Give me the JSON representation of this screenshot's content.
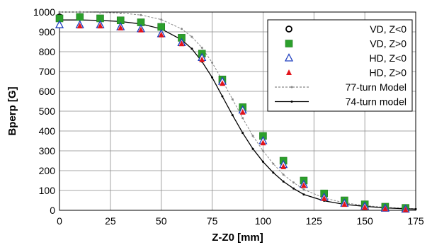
{
  "chart_data": {
    "type": "scatter",
    "xlabel": "Z-Z0 [mm]",
    "ylabel": "Bperp [G]",
    "xlim": [
      0,
      175
    ],
    "ylim": [
      0,
      1000
    ],
    "xticks": [
      "0",
      "25",
      "50",
      "75",
      "100",
      "125",
      "150",
      "175"
    ],
    "yticks": [
      "0",
      "100",
      "200",
      "300",
      "400",
      "500",
      "600",
      "700",
      "800",
      "900",
      "1000"
    ],
    "grid": true,
    "legend_position": "top-right",
    "series": [
      {
        "name": "VD, Z<0",
        "marker": "open-circle",
        "color": "#000000",
        "x": [
          0
        ],
        "y": [
          975
        ]
      },
      {
        "name": "VD, Z>0",
        "marker": "filled-square",
        "color": "#2ca02c",
        "x": [
          0,
          10,
          20,
          30,
          40,
          50,
          60,
          70,
          80,
          90,
          100,
          110,
          120,
          130,
          140,
          150,
          160,
          170
        ],
        "y": [
          968,
          975,
          968,
          958,
          948,
          925,
          870,
          790,
          660,
          520,
          375,
          250,
          150,
          85,
          50,
          30,
          18,
          12
        ]
      },
      {
        "name": "HD, Z<0",
        "marker": "open-triangle",
        "color": "#1f3fbf",
        "x": [
          0,
          10,
          20,
          30,
          40,
          50,
          60,
          70,
          80,
          90,
          100,
          110,
          120,
          130,
          140,
          150,
          160,
          170
        ],
        "y": [
          935,
          935,
          935,
          925,
          915,
          890,
          845,
          770,
          650,
          505,
          350,
          230,
          130,
          65,
          35,
          20,
          10,
          5
        ]
      },
      {
        "name": "HD, Z>0",
        "marker": "filled-triangle",
        "color": "#e3141b",
        "x": [
          10,
          20,
          30,
          40,
          50,
          60,
          70,
          80,
          90,
          100,
          110,
          120,
          130,
          140,
          150,
          160,
          170
        ],
        "y": [
          930,
          930,
          920,
          910,
          885,
          840,
          760,
          640,
          495,
          340,
          220,
          125,
          60,
          30,
          15,
          8,
          3
        ]
      },
      {
        "name": "77-turn Model",
        "marker": "line-dashed-dots",
        "color": "#888888",
        "x": [
          0,
          10,
          20,
          30,
          40,
          50,
          60,
          65,
          70,
          75,
          80,
          85,
          90,
          95,
          100,
          105,
          110,
          115,
          120,
          130,
          140,
          150,
          160,
          170,
          175
        ],
        "y": [
          1000,
          1000,
          998,
          995,
          985,
          962,
          915,
          875,
          820,
          745,
          655,
          560,
          465,
          375,
          300,
          235,
          180,
          140,
          105,
          62,
          38,
          24,
          15,
          10,
          8
        ]
      },
      {
        "name": "74-turn model",
        "marker": "line-solid-dots",
        "color": "#000000",
        "x": [
          0,
          10,
          20,
          30,
          40,
          50,
          60,
          65,
          70,
          75,
          80,
          85,
          90,
          95,
          100,
          105,
          110,
          115,
          120,
          130,
          140,
          150,
          160,
          170,
          175
        ],
        "y": [
          960,
          960,
          958,
          952,
          940,
          915,
          860,
          815,
          750,
          670,
          575,
          480,
          390,
          310,
          245,
          190,
          145,
          110,
          80,
          48,
          30,
          20,
          12,
          8,
          6
        ]
      }
    ]
  }
}
